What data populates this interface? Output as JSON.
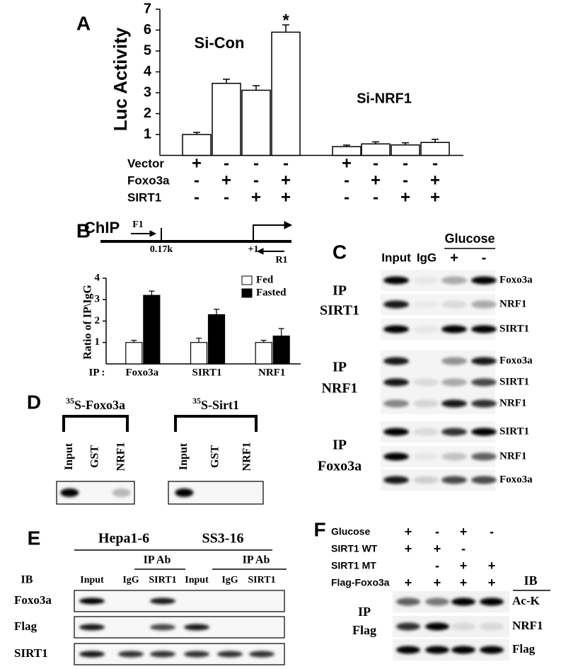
{
  "panel_labels": [
    "A",
    "B",
    "C",
    "D",
    "E",
    "F"
  ],
  "chart_data": [
    {
      "type": "bar",
      "ylabel": "Luc Activity",
      "categories": [
        null,
        null,
        null,
        null,
        null,
        null,
        null,
        null
      ],
      "values": [
        1.0,
        3.45,
        3.12,
        5.9,
        0.42,
        0.55,
        0.5,
        0.62
      ],
      "errors": [
        0.1,
        0.2,
        0.22,
        0.35,
        0.07,
        0.1,
        0.1,
        0.15
      ],
      "color": "#ffffff",
      "ylim": [
        0,
        7
      ],
      "yticks": [
        1,
        2,
        3,
        4,
        5,
        6,
        7
      ],
      "annotations": [
        "Si-Con",
        "Si-NRF1",
        "*"
      ],
      "conditions": [
        {
          "name": "Vector",
          "signs": [
            "+",
            "-",
            "-",
            "-",
            "+",
            "-",
            "-",
            "-"
          ]
        },
        {
          "name": "Foxo3a",
          "signs": [
            "-",
            "+",
            "-",
            "+",
            "-",
            "+",
            "-",
            "+"
          ]
        },
        {
          "name": "SIRT1",
          "signs": [
            "-",
            "-",
            "+",
            "+",
            "-",
            "-",
            "+",
            "+"
          ]
        }
      ]
    },
    {
      "type": "grouped-bar",
      "ylabel": "Ratio of IP\\IgG",
      "xlabel": "IP :",
      "categories": [
        "Foxo3a",
        "SIRT1",
        "NRF1"
      ],
      "series": [
        {
          "name": "Fed",
          "color": "#ffffff",
          "values": [
            1,
            1,
            1
          ],
          "errors": [
            0.1,
            0.2,
            0.1
          ]
        },
        {
          "name": "Fasted",
          "color": "#000000",
          "values": [
            3.2,
            2.3,
            1.3
          ],
          "errors": [
            0.2,
            0.25,
            0.35
          ]
        }
      ],
      "ylim": [
        0,
        4
      ],
      "yticks": [
        1,
        2,
        3,
        4
      ],
      "legend": "upper right"
    }
  ],
  "chip_diagram": {
    "title": "ChIP",
    "forward_primer": "F1",
    "position": "0.17k",
    "start": "+1",
    "reverse_primer": "R1"
  },
  "panel_c": {
    "columns": [
      "Input",
      "IgG"
    ],
    "treatment": "Glucose",
    "treatment_signs": [
      "+",
      "-"
    ],
    "groups": [
      {
        "ip": "IP",
        "antibody": "SIRT1",
        "bands": [
          "Foxo3a",
          "NRF1",
          "SIRT1"
        ]
      },
      {
        "ip": "IP",
        "antibody": "NRF1",
        "bands": [
          "Foxo3a",
          "SIRT1",
          "NRF1"
        ]
      },
      {
        "ip": "IP",
        "antibody": "Foxo3a",
        "bands": [
          "SIRT1",
          "NRF1",
          "Foxo3a"
        ]
      }
    ]
  },
  "panel_d": {
    "blots": [
      {
        "isotope": "35",
        "probe": "S-Foxo3a",
        "lanes": [
          "Input",
          "GST",
          "NRF1"
        ]
      },
      {
        "isotope": "35",
        "probe": "S-Sirt1",
        "lanes": [
          "Input",
          "GST",
          "NRF1"
        ]
      }
    ]
  },
  "panel_e": {
    "cells": [
      {
        "name": "Hepa1-6",
        "ip": "IP Ab",
        "lanes": [
          "Input",
          "IgG",
          "SIRT1"
        ]
      },
      {
        "name": "SS3-16",
        "ip": "IP Ab",
        "lanes": [
          "Input",
          "IgG",
          "SIRT1"
        ]
      }
    ],
    "ib": "IB",
    "blots": [
      "Foxo3a",
      "Flag",
      "SIRT1"
    ]
  },
  "panel_f": {
    "conditions": [
      {
        "name": "Glucose",
        "signs": [
          "+",
          "-",
          "+",
          "-"
        ]
      },
      {
        "name": "SIRT1 WT",
        "signs": [
          "+",
          "+",
          "-",
          null
        ]
      },
      {
        "name": "SIRT1 MT",
        "signs": [
          null,
          "-",
          "+",
          "+"
        ]
      },
      {
        "name": "Flag-Foxo3a",
        "signs": [
          "+",
          "+",
          "+",
          "+"
        ]
      }
    ],
    "ip": "IP",
    "ip_antibody": "Flag",
    "ib": "IB",
    "blots": [
      "Ac-K",
      "NRF1",
      "Flag"
    ]
  }
}
